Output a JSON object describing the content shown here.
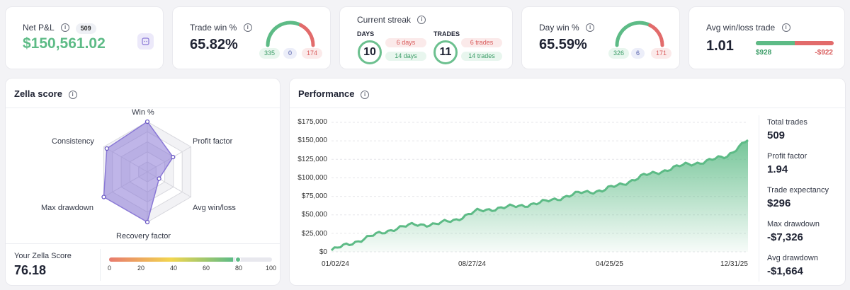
{
  "netpl": {
    "label": "Net P&L",
    "count": "509",
    "value": "$150,561.02"
  },
  "tradewin": {
    "label": "Trade win %",
    "value": "65.82%",
    "win": "335",
    "even": "0",
    "loss": "174"
  },
  "streak": {
    "label": "Current streak",
    "days_label": "DAYS",
    "days_value": "10",
    "days_loss": "6 days",
    "days_win": "14 days",
    "trades_label": "TRADES",
    "trades_value": "11",
    "trades_loss": "6 trades",
    "trades_win": "14 trades"
  },
  "daywin": {
    "label": "Day win %",
    "value": "65.59%",
    "win": "326",
    "even": "6",
    "loss": "171"
  },
  "avgwl": {
    "label": "Avg win/loss trade",
    "value": "1.01",
    "avg_win": "$928",
    "avg_loss": "-$922",
    "win_fraction": 0.5
  },
  "zella": {
    "title": "Zella score",
    "score_label": "Your Zella Score",
    "score": "76.18",
    "score_value": 76.18,
    "scale": [
      "0",
      "20",
      "40",
      "60",
      "80",
      "100"
    ],
    "axes": [
      "Win %",
      "Profit factor",
      "Avg win/loss",
      "Recovery factor",
      "Max drawdown",
      "Consistency"
    ],
    "values": [
      100,
      59,
      27,
      100,
      100,
      93
    ]
  },
  "performance": {
    "title": "Performance",
    "y_ticks": [
      "$175,000",
      "$150,000",
      "$125,000",
      "$100,000",
      "$75,000",
      "$50,000",
      "$25,000",
      "$0"
    ],
    "x_ticks": [
      "01/02/24",
      "08/27/24",
      "04/25/25",
      "12/31/25"
    ],
    "stats": [
      {
        "label": "Total trades",
        "value": "509"
      },
      {
        "label": "Profit factor",
        "value": "1.94"
      },
      {
        "label": "Trade expectancy",
        "value": "$296"
      },
      {
        "label": "Max drawdown",
        "value": "-$7,326"
      },
      {
        "label": "Avg drawdown",
        "value": "-$1,664"
      }
    ]
  },
  "chart_data": {
    "type": "area",
    "title": "Performance",
    "xlabel": "",
    "ylabel": "",
    "ylim": [
      0,
      175000
    ],
    "x": [
      0,
      0.05,
      0.1,
      0.15,
      0.2,
      0.25,
      0.3,
      0.35,
      0.4,
      0.45,
      0.5,
      0.55,
      0.6,
      0.65,
      0.7,
      0.75,
      0.8,
      0.85,
      0.9,
      0.95,
      1.0
    ],
    "values": [
      2000,
      12000,
      22000,
      31000,
      37000,
      37000,
      44000,
      55000,
      59000,
      62000,
      66000,
      73000,
      80000,
      83000,
      92000,
      103000,
      110000,
      118000,
      122000,
      130000,
      151000
    ],
    "x_tick_labels": [
      "01/02/24",
      "08/27/24",
      "04/25/25",
      "12/31/25"
    ],
    "y_tick_labels": [
      "$0",
      "$25,000",
      "$50,000",
      "$75,000",
      "$100,000",
      "$125,000",
      "$150,000",
      "$175,000"
    ]
  },
  "colors": {
    "green": "#5dbb86",
    "red": "#e26b6b",
    "purple": "#8a79d6"
  }
}
